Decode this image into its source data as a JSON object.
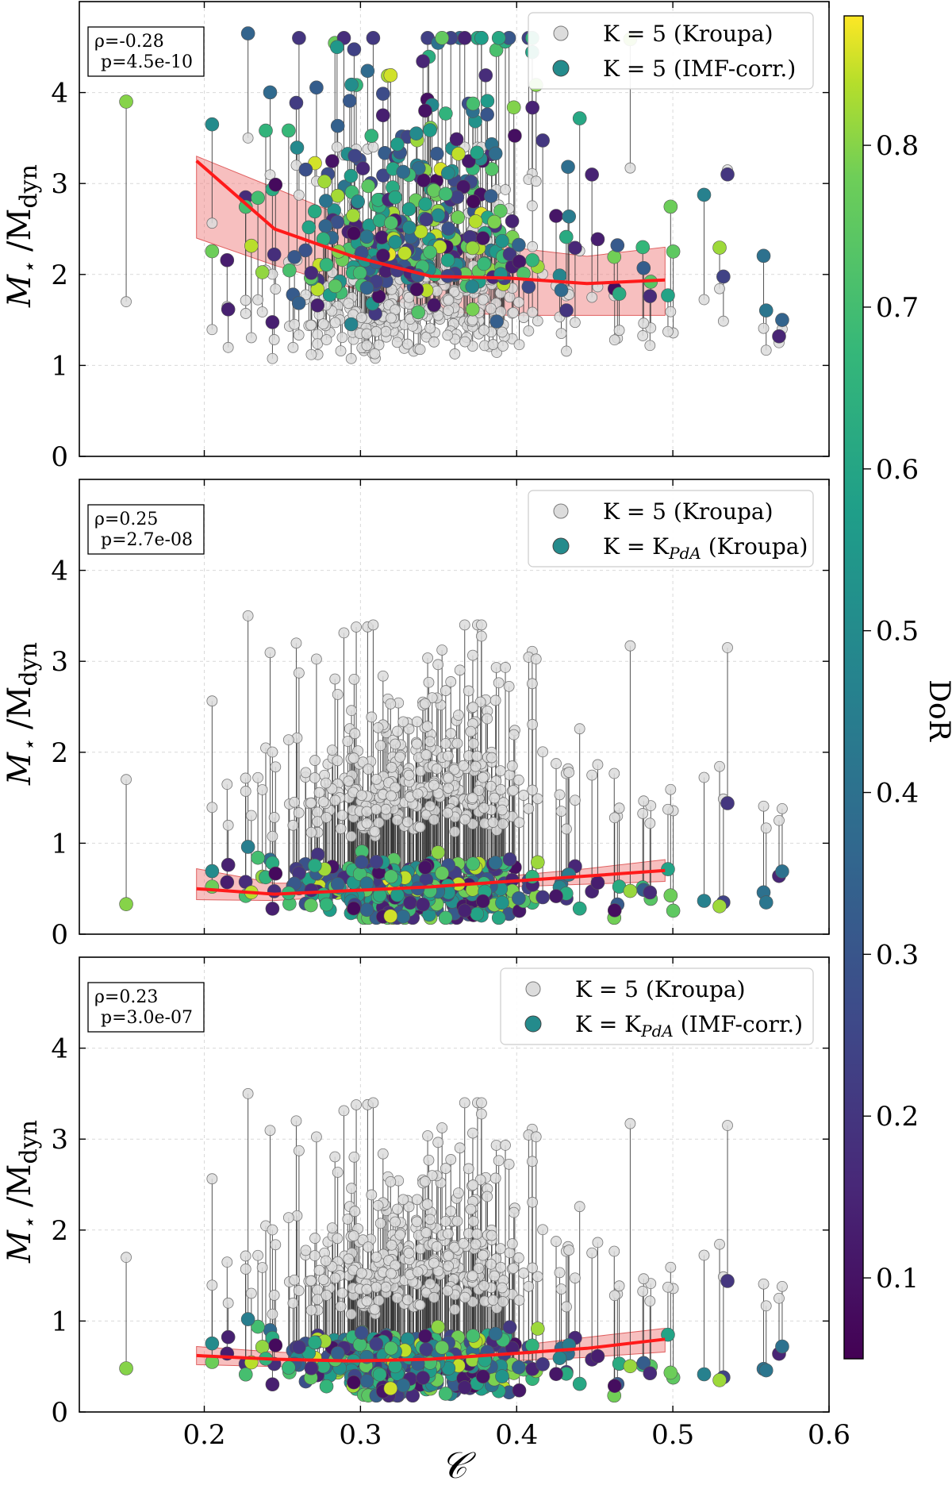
{
  "figure": {
    "colorbar": {
      "label": "DoR",
      "range": [
        0.05,
        0.88
      ],
      "ticks": [
        0.1,
        0.2,
        0.3,
        0.4,
        0.5,
        0.6,
        0.7,
        0.8
      ],
      "tick_labels": [
        "0.1",
        "0.2",
        "0.3",
        "0.4",
        "0.5",
        "0.6",
        "0.7",
        "0.8"
      ],
      "colormap": "viridis"
    },
    "xlabel": "𝒞"
  },
  "chart_data": [
    {
      "type": "scatter",
      "panel": "top",
      "ylabel_main": "M",
      "ylabel_sub1": "⋆",
      "ylabel_mid": " /M",
      "ylabel_sub2": "dyn",
      "xlim": [
        0.12,
        0.6
      ],
      "ylim": [
        0,
        5
      ],
      "xticks": [
        0.2,
        0.3,
        0.4,
        0.5,
        0.6
      ],
      "yticks": [
        0,
        1,
        2,
        3,
        4
      ],
      "grid": true,
      "stats": {
        "rho": "ρ=-0.28",
        "p": "p=4.5e-10"
      },
      "legend": {
        "position": "top-right",
        "entries": [
          "K = 5 (Kroupa)",
          "K = 5 (IMF-corr.)"
        ]
      },
      "trend": {
        "x": [
          0.195,
          0.245,
          0.295,
          0.345,
          0.395,
          0.445,
          0.495
        ],
        "y": [
          3.25,
          2.5,
          2.2,
          1.98,
          1.96,
          1.9,
          1.94
        ],
        "band_low": [
          2.4,
          2.1,
          1.85,
          1.6,
          1.55,
          1.55,
          1.55
        ],
        "band_high": [
          3.3,
          2.95,
          2.6,
          2.4,
          2.3,
          2.2,
          2.3
        ]
      },
      "highlighted_points": [
        {
          "x": 0.15,
          "y_grey": 1.7,
          "y_color": 3.9,
          "dor": 0.8
        },
        {
          "x": 0.228,
          "y_grey": 3.5,
          "y_color": 4.65,
          "dor": 0.35
        },
        {
          "x": 0.285,
          "y_grey": 3.4,
          "y_color": 4.5,
          "dor": 0.55
        },
        {
          "x": 0.535,
          "y_grey": 3.15,
          "y_color": 3.1,
          "dor": 0.2
        },
        {
          "x": 0.568,
          "y_grey": 1.25,
          "y_color": 1.32,
          "dor": 0.15
        },
        {
          "x": 0.57,
          "y_grey": 1.4,
          "y_color": 1.5,
          "dor": 0.35
        }
      ]
    },
    {
      "type": "scatter",
      "panel": "middle",
      "ylabel_main": "M",
      "ylabel_sub1": "⋆",
      "ylabel_mid": " /M",
      "ylabel_sub2": "dyn",
      "xlim": [
        0.12,
        0.6
      ],
      "ylim": [
        0,
        5
      ],
      "xticks": [
        0.2,
        0.3,
        0.4,
        0.5,
        0.6
      ],
      "yticks": [
        0,
        1,
        2,
        3,
        4
      ],
      "grid": true,
      "stats": {
        "rho": "ρ=0.25",
        "p": "p=2.7e-08"
      },
      "legend": {
        "position": "top-right",
        "entries": [
          "K = 5 (Kroupa)",
          "K = K",
          "PdA",
          " (Kroupa)"
        ]
      },
      "trend": {
        "x": [
          0.195,
          0.245,
          0.295,
          0.345,
          0.395,
          0.445,
          0.495
        ],
        "y": [
          0.5,
          0.44,
          0.48,
          0.52,
          0.58,
          0.64,
          0.7
        ],
        "band_low": [
          0.38,
          0.37,
          0.42,
          0.46,
          0.52,
          0.55,
          0.58
        ],
        "band_high": [
          0.72,
          0.56,
          0.56,
          0.58,
          0.64,
          0.72,
          0.82
        ]
      },
      "highlighted_points": [
        {
          "x": 0.15,
          "y_grey": 1.7,
          "y_color": 0.33,
          "dor": 0.8
        },
        {
          "x": 0.228,
          "y_grey": 3.5,
          "y_color": 0.96,
          "dor": 0.45
        },
        {
          "x": 0.535,
          "y_grey": 3.15,
          "y_color": 1.44,
          "dor": 0.2
        },
        {
          "x": 0.568,
          "y_grey": 1.25,
          "y_color": 0.64,
          "dor": 0.15
        },
        {
          "x": 0.57,
          "y_grey": 1.38,
          "y_color": 0.69,
          "dor": 0.4
        }
      ]
    },
    {
      "type": "scatter",
      "panel": "bottom",
      "ylabel_main": "M",
      "ylabel_sub1": "⋆",
      "ylabel_mid": " /M",
      "ylabel_sub2": "dyn",
      "xlim": [
        0.12,
        0.6
      ],
      "ylim": [
        0,
        5
      ],
      "xticks": [
        0.2,
        0.3,
        0.4,
        0.5,
        0.6
      ],
      "xtick_labels": [
        "0.2",
        "0.3",
        "0.4",
        "0.5",
        "0.6"
      ],
      "yticks": [
        0,
        1,
        2,
        3,
        4
      ],
      "grid": true,
      "stats": {
        "rho": "ρ=0.23",
        "p": "p=3.0e-07"
      },
      "legend": {
        "position": "top-right",
        "entries": [
          "K = 5 (Kroupa)",
          "K = K",
          "PdA",
          " (IMF-corr.)"
        ]
      },
      "trend": {
        "x": [
          0.195,
          0.245,
          0.295,
          0.345,
          0.395,
          0.445,
          0.495
        ],
        "y": [
          0.62,
          0.58,
          0.56,
          0.58,
          0.64,
          0.7,
          0.8
        ],
        "band_low": [
          0.52,
          0.5,
          0.5,
          0.52,
          0.56,
          0.6,
          0.66
        ],
        "band_high": [
          0.72,
          0.66,
          0.62,
          0.64,
          0.72,
          0.82,
          0.92
        ]
      },
      "highlighted_points": [
        {
          "x": 0.15,
          "y_grey": 1.7,
          "y_color": 0.48,
          "dor": 0.8
        },
        {
          "x": 0.228,
          "y_grey": 3.5,
          "y_color": 1.02,
          "dor": 0.45
        },
        {
          "x": 0.535,
          "y_grey": 3.15,
          "y_color": 1.44,
          "dor": 0.2
        },
        {
          "x": 0.568,
          "y_grey": 1.25,
          "y_color": 0.64,
          "dor": 0.15
        },
        {
          "x": 0.57,
          "y_grey": 1.38,
          "y_color": 0.72,
          "dor": 0.4
        }
      ]
    }
  ]
}
